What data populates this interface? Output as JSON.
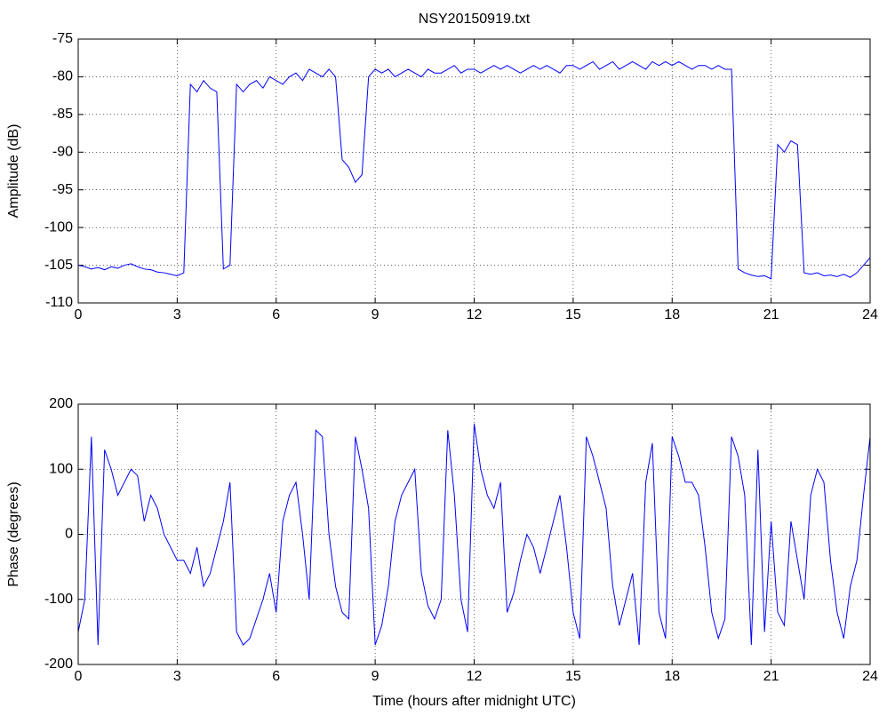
{
  "chart_data": [
    {
      "type": "line",
      "title": "NSY20150919.txt",
      "ylabel": "Amplitude (dB)",
      "color": "#0000ff",
      "grid": true,
      "xlim": [
        0,
        24
      ],
      "xticks": [
        0,
        3,
        6,
        9,
        12,
        15,
        18,
        21,
        24
      ],
      "ylim": [
        -110,
        -75
      ],
      "yticks": [
        -110,
        -105,
        -100,
        -95,
        -90,
        -85,
        -80,
        -75
      ],
      "x": [
        0,
        0.2,
        0.4,
        0.6,
        0.8,
        1,
        1.2,
        1.4,
        1.6,
        1.8,
        2,
        2.2,
        2.4,
        2.6,
        2.8,
        3,
        3.2,
        3.4,
        3.6,
        3.8,
        4,
        4.2,
        4.4,
        4.6,
        4.8,
        5,
        5.2,
        5.4,
        5.6,
        5.8,
        6,
        6.2,
        6.4,
        6.6,
        6.8,
        7,
        7.2,
        7.4,
        7.6,
        7.8,
        8,
        8.2,
        8.4,
        8.6,
        8.8,
        9,
        9.2,
        9.4,
        9.6,
        9.8,
        10,
        10.2,
        10.4,
        10.6,
        10.8,
        11,
        11.2,
        11.4,
        11.6,
        11.8,
        12,
        12.2,
        12.4,
        12.6,
        12.8,
        13,
        13.2,
        13.4,
        13.6,
        13.8,
        14,
        14.2,
        14.4,
        14.6,
        14.8,
        15,
        15.2,
        15.4,
        15.6,
        15.8,
        16,
        16.2,
        16.4,
        16.6,
        16.8,
        17,
        17.2,
        17.4,
        17.6,
        17.8,
        18,
        18.2,
        18.4,
        18.6,
        18.8,
        19,
        19.2,
        19.4,
        19.6,
        19.8,
        20,
        20.2,
        20.4,
        20.6,
        20.8,
        21,
        21.2,
        21.4,
        21.6,
        21.8,
        22,
        22.2,
        22.4,
        22.6,
        22.8,
        23,
        23.2,
        23.4,
        23.6,
        23.8,
        24
      ],
      "values": [
        -105,
        -105.2,
        -105.5,
        -105.3,
        -105.6,
        -105.2,
        -105.4,
        -105,
        -104.8,
        -105.2,
        -105.5,
        -105.6,
        -105.9,
        -106,
        -106.2,
        -106.4,
        -106,
        -81,
        -82,
        -80.5,
        -81.5,
        -82,
        -105.5,
        -105,
        -81,
        -82,
        -81,
        -80.5,
        -81.5,
        -80,
        -80.5,
        -81,
        -80,
        -79.5,
        -80.5,
        -79,
        -79.5,
        -80,
        -79,
        -80,
        -91,
        -92,
        -94,
        -93,
        -80,
        -79,
        -79.5,
        -79,
        -80,
        -79.5,
        -79,
        -79.5,
        -80,
        -79,
        -79.5,
        -79.5,
        -79,
        -78.5,
        -79.5,
        -79,
        -79,
        -79.5,
        -79,
        -78.5,
        -79,
        -78.5,
        -79,
        -79.5,
        -79,
        -78.5,
        -79,
        -78.5,
        -79,
        -79.5,
        -78.5,
        -78.5,
        -79,
        -78.5,
        -78,
        -79,
        -78.5,
        -78,
        -79,
        -78.5,
        -78,
        -78.5,
        -79,
        -78,
        -78.5,
        -78,
        -78.5,
        -78,
        -78.5,
        -79,
        -78.5,
        -78.5,
        -79,
        -78.5,
        -79,
        -79,
        -105.5,
        -106,
        -106.3,
        -106.5,
        -106.4,
        -106.8,
        -89,
        -90,
        -88.5,
        -89,
        -106,
        -106.2,
        -106,
        -106.4,
        -106.3,
        -106.5,
        -106.2,
        -106.6,
        -106,
        -105,
        -104
      ]
    },
    {
      "type": "line",
      "xlabel": "Time (hours after midnight UTC)",
      "ylabel": "Phase (degrees)",
      "color": "#0000ff",
      "grid": true,
      "xlim": [
        0,
        24
      ],
      "xticks": [
        0,
        3,
        6,
        9,
        12,
        15,
        18,
        21,
        24
      ],
      "ylim": [
        -200,
        200
      ],
      "yticks": [
        -200,
        -100,
        0,
        100,
        200
      ],
      "x": [
        0,
        0.2,
        0.4,
        0.6,
        0.8,
        1,
        1.2,
        1.4,
        1.6,
        1.8,
        2,
        2.2,
        2.4,
        2.6,
        2.8,
        3,
        3.2,
        3.4,
        3.6,
        3.8,
        4,
        4.2,
        4.4,
        4.6,
        4.8,
        5,
        5.2,
        5.4,
        5.6,
        5.8,
        6,
        6.2,
        6.4,
        6.6,
        6.8,
        7,
        7.2,
        7.4,
        7.6,
        7.8,
        8,
        8.2,
        8.4,
        8.6,
        8.8,
        9,
        9.2,
        9.4,
        9.6,
        9.8,
        10,
        10.2,
        10.4,
        10.6,
        10.8,
        11,
        11.2,
        11.4,
        11.6,
        11.8,
        12,
        12.2,
        12.4,
        12.6,
        12.8,
        13,
        13.2,
        13.4,
        13.6,
        13.8,
        14,
        14.2,
        14.4,
        14.6,
        14.8,
        15,
        15.2,
        15.4,
        15.6,
        15.8,
        16,
        16.2,
        16.4,
        16.6,
        16.8,
        17,
        17.2,
        17.4,
        17.6,
        17.8,
        18,
        18.2,
        18.4,
        18.6,
        18.8,
        19,
        19.2,
        19.4,
        19.6,
        19.8,
        20,
        20.2,
        20.4,
        20.6,
        20.8,
        21,
        21.2,
        21.4,
        21.6,
        21.8,
        22,
        22.2,
        22.4,
        22.6,
        22.8,
        23,
        23.2,
        23.4,
        23.6,
        23.8,
        24
      ],
      "values": [
        -150,
        -100,
        150,
        -170,
        130,
        100,
        60,
        80,
        100,
        90,
        20,
        60,
        40,
        0,
        -20,
        -40,
        -40,
        -60,
        -20,
        -80,
        -60,
        -20,
        20,
        80,
        -150,
        -170,
        -160,
        -130,
        -100,
        -60,
        -120,
        20,
        60,
        80,
        0,
        -100,
        160,
        150,
        0,
        -80,
        -120,
        -130,
        150,
        100,
        40,
        -170,
        -140,
        -80,
        20,
        60,
        80,
        100,
        -60,
        -110,
        -130,
        -100,
        160,
        60,
        -100,
        -150,
        170,
        100,
        60,
        40,
        80,
        -120,
        -90,
        -40,
        0,
        -20,
        -60,
        -20,
        20,
        60,
        -20,
        -120,
        -160,
        150,
        120,
        80,
        40,
        -80,
        -140,
        -100,
        -60,
        -170,
        80,
        140,
        -120,
        -160,
        150,
        120,
        80,
        80,
        60,
        -20,
        -120,
        -160,
        -130,
        150,
        120,
        60,
        -170,
        130,
        -150,
        20,
        -120,
        -140,
        20,
        -40,
        -100,
        60,
        100,
        80,
        -40,
        -120,
        -160,
        -80,
        -40,
        60,
        150
      ]
    }
  ]
}
